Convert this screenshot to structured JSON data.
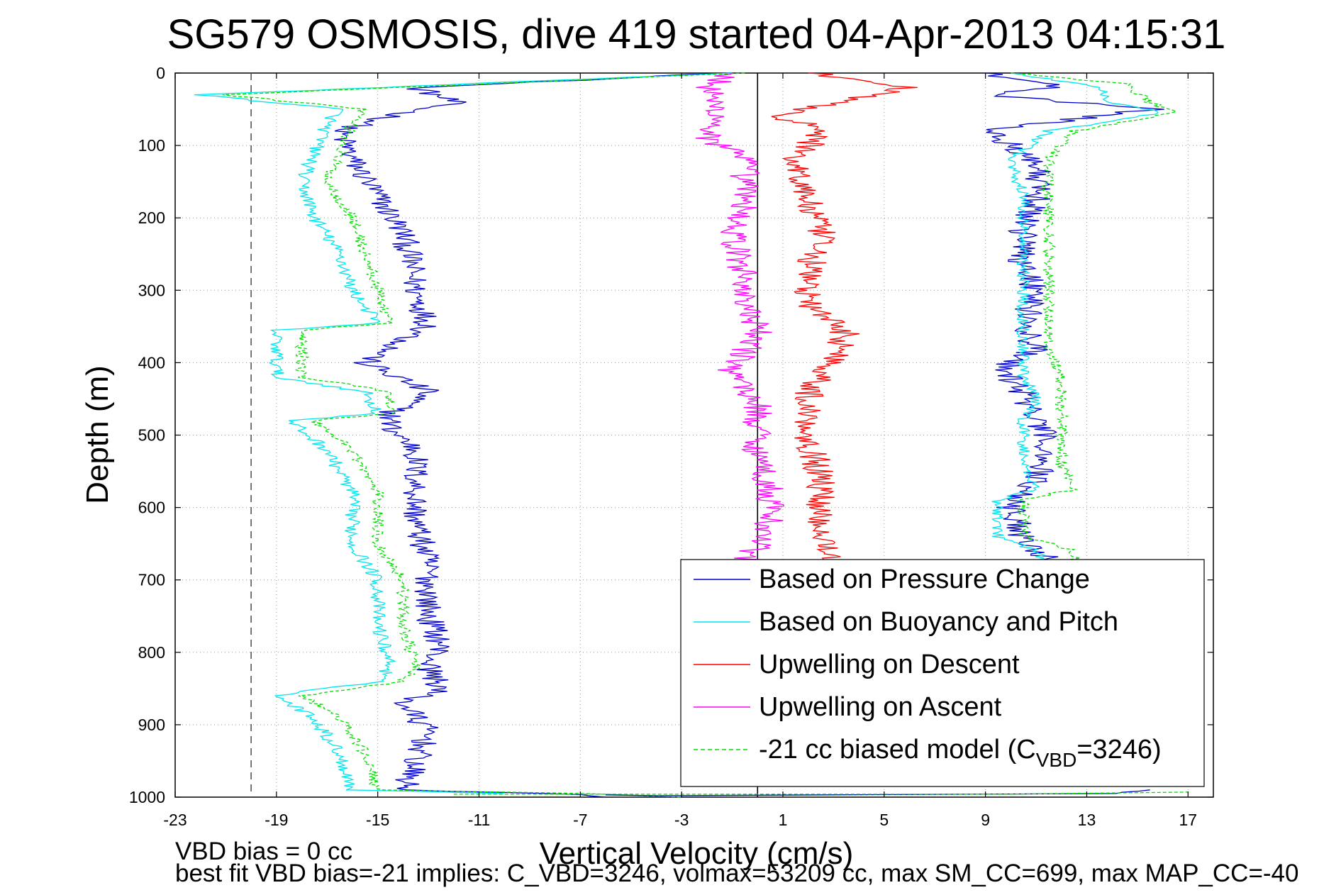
{
  "chart_data": {
    "type": "line",
    "title": "SG579 OSMOSIS, dive 419 started 04-Apr-2013 04:15:31",
    "xlabel": "Vertical Velocity (cm/s)",
    "ylabel": "Depth (m)",
    "xlim": [
      -23,
      18
    ],
    "ylim": [
      0,
      1000
    ],
    "y_reversed": true,
    "grid": true,
    "xticks": [
      -23,
      -19,
      -15,
      -11,
      -7,
      -3,
      1,
      5,
      9,
      13,
      17
    ],
    "yticks": [
      0,
      100,
      200,
      300,
      400,
      500,
      600,
      700,
      800,
      900,
      1000
    ],
    "reference_lines": [
      {
        "x": -20,
        "style": "dashed",
        "color": "#555555"
      },
      {
        "x": 0,
        "style": "solid",
        "color": "#000000"
      }
    ],
    "legend_position": "bottom-right",
    "legend": [
      {
        "label": "Based on Pressure Change",
        "color": "#0000cc",
        "dashed": false
      },
      {
        "label": "Based on Buoyancy and Pitch",
        "color": "#00e5ee",
        "dashed": false
      },
      {
        "label": "Upwelling on Descent",
        "color": "#ff0000",
        "dashed": false
      },
      {
        "label": "Upwelling on Ascent",
        "color": "#ff00ff",
        "dashed": false
      },
      {
        "label_prefix": "-21 cc biased model (C",
        "label_sub": "VBD",
        "label_suffix": "=3246)",
        "color": "#00dd00",
        "dashed": true
      }
    ],
    "series": [
      {
        "key": "pressure_descent",
        "color": "#0000cc",
        "dashed": false,
        "noise": 0.55,
        "points": [
          [
            -1.0,
            0
          ],
          [
            -13.5,
            20
          ],
          [
            -12.0,
            40
          ],
          [
            -14.5,
            60
          ],
          [
            -16.5,
            80
          ],
          [
            -16.0,
            120
          ],
          [
            -15.0,
            170
          ],
          [
            -14.0,
            220
          ],
          [
            -13.7,
            260
          ],
          [
            -13.5,
            300
          ],
          [
            -13.0,
            350
          ],
          [
            -15.5,
            400
          ],
          [
            -13.0,
            440
          ],
          [
            -14.5,
            470
          ],
          [
            -14.5,
            490
          ],
          [
            -13.5,
            520
          ],
          [
            -13.5,
            560
          ],
          [
            -13.5,
            620
          ],
          [
            -13.0,
            680
          ],
          [
            -13.0,
            750
          ],
          [
            -12.5,
            790
          ],
          [
            -13.0,
            820
          ],
          [
            -12.5,
            850
          ],
          [
            -14.0,
            870
          ],
          [
            -13.0,
            910
          ],
          [
            -13.5,
            950
          ],
          [
            -14.0,
            990
          ],
          [
            -8.0,
            995
          ],
          [
            -6.0,
            1000
          ]
        ]
      },
      {
        "key": "buoyancy_descent",
        "color": "#00e5ee",
        "dashed": false,
        "noise": 0.3,
        "points": [
          [
            -1.0,
            0
          ],
          [
            -22.0,
            30
          ],
          [
            -16.5,
            50
          ],
          [
            -17.0,
            70
          ],
          [
            -17.5,
            110
          ],
          [
            -18.0,
            150
          ],
          [
            -17.5,
            200
          ],
          [
            -16.5,
            250
          ],
          [
            -16.0,
            300
          ],
          [
            -15.0,
            345
          ],
          [
            -19.0,
            355
          ],
          [
            -19.0,
            420
          ],
          [
            -15.5,
            440
          ],
          [
            -15.0,
            470
          ],
          [
            -18.5,
            480
          ],
          [
            -17.0,
            520
          ],
          [
            -16.0,
            580
          ],
          [
            -16.0,
            650
          ],
          [
            -15.0,
            700
          ],
          [
            -15.0,
            760
          ],
          [
            -14.5,
            820
          ],
          [
            -15.0,
            840
          ],
          [
            -19.0,
            860
          ],
          [
            -17.5,
            890
          ],
          [
            -16.5,
            940
          ],
          [
            -16.0,
            990
          ],
          [
            -10.0,
            995
          ]
        ]
      },
      {
        "key": "model_descent",
        "color": "#00dd00",
        "dashed": true,
        "noise": 0.25,
        "points": [
          [
            -0.5,
            0
          ],
          [
            -21.0,
            30
          ],
          [
            -15.5,
            50
          ],
          [
            -16.0,
            70
          ],
          [
            -16.5,
            110
          ],
          [
            -17.0,
            150
          ],
          [
            -16.0,
            200
          ],
          [
            -15.5,
            250
          ],
          [
            -15.0,
            300
          ],
          [
            -14.5,
            345
          ],
          [
            -18.0,
            355
          ],
          [
            -18.0,
            420
          ],
          [
            -14.5,
            440
          ],
          [
            -14.5,
            470
          ],
          [
            -17.5,
            480
          ],
          [
            -16.0,
            520
          ],
          [
            -15.0,
            580
          ],
          [
            -15.0,
            650
          ],
          [
            -14.0,
            700
          ],
          [
            -14.0,
            760
          ],
          [
            -13.5,
            820
          ],
          [
            -14.0,
            840
          ],
          [
            -18.0,
            860
          ],
          [
            -16.5,
            890
          ],
          [
            -15.5,
            940
          ],
          [
            -15.0,
            990
          ],
          [
            -7.0,
            995
          ],
          [
            -3.0,
            1000
          ]
        ]
      },
      {
        "key": "upwell_descent",
        "color": "#ff0000",
        "dashed": false,
        "noise": 0.6,
        "points": [
          [
            2.0,
            0
          ],
          [
            6.0,
            20
          ],
          [
            3.0,
            40
          ],
          [
            1.0,
            60
          ],
          [
            2.5,
            80
          ],
          [
            1.5,
            120
          ],
          [
            2.0,
            180
          ],
          [
            2.5,
            220
          ],
          [
            2.0,
            280
          ],
          [
            2.0,
            320
          ],
          [
            3.5,
            360
          ],
          [
            3.0,
            400
          ],
          [
            2.0,
            440
          ],
          [
            2.0,
            500
          ],
          [
            2.5,
            560
          ],
          [
            2.5,
            620
          ],
          [
            3.0,
            680
          ]
        ]
      },
      {
        "key": "upwell_ascent",
        "color": "#ff00ff",
        "dashed": false,
        "noise": 0.6,
        "points": [
          [
            -1.0,
            0
          ],
          [
            -2.0,
            20
          ],
          [
            -1.5,
            60
          ],
          [
            -2.0,
            90
          ],
          [
            -0.5,
            120
          ],
          [
            -0.5,
            180
          ],
          [
            -1.0,
            230
          ],
          [
            -0.5,
            280
          ],
          [
            -0.5,
            320
          ],
          [
            0.0,
            360
          ],
          [
            -1.0,
            410
          ],
          [
            0.0,
            460
          ],
          [
            0.0,
            520
          ],
          [
            0.5,
            580
          ],
          [
            0.5,
            620
          ],
          [
            -0.5,
            680
          ]
        ]
      },
      {
        "key": "pressure_ascent",
        "color": "#0000cc",
        "dashed": false,
        "noise": 0.6,
        "points": [
          [
            9.0,
            0
          ],
          [
            12.0,
            20
          ],
          [
            9.0,
            30
          ],
          [
            15.5,
            50
          ],
          [
            9.0,
            80
          ],
          [
            11.0,
            120
          ],
          [
            11.0,
            170
          ],
          [
            10.5,
            220
          ],
          [
            10.5,
            260
          ],
          [
            11.0,
            300
          ],
          [
            10.5,
            350
          ],
          [
            11.0,
            380
          ],
          [
            9.5,
            410
          ],
          [
            10.5,
            440
          ],
          [
            11.0,
            480
          ],
          [
            11.5,
            520
          ],
          [
            11.0,
            560
          ],
          [
            10.0,
            600
          ],
          [
            10.5,
            640
          ],
          [
            11.5,
            670
          ],
          [
            12.0,
            680
          ]
        ]
      },
      {
        "key": "buoyancy_ascent",
        "color": "#00e5ee",
        "dashed": false,
        "noise": 0.25,
        "points": [
          [
            10.0,
            0
          ],
          [
            13.5,
            20
          ],
          [
            14.0,
            40
          ],
          [
            16.0,
            55
          ],
          [
            11.5,
            80
          ],
          [
            10.0,
            120
          ],
          [
            10.5,
            170
          ],
          [
            10.5,
            220
          ],
          [
            10.5,
            280
          ],
          [
            10.5,
            330
          ],
          [
            10.5,
            380
          ],
          [
            10.5,
            420
          ],
          [
            11.0,
            450
          ],
          [
            10.5,
            480
          ],
          [
            10.5,
            540
          ],
          [
            11.0,
            575
          ],
          [
            9.5,
            590
          ],
          [
            9.5,
            640
          ],
          [
            11.0,
            660
          ],
          [
            11.5,
            680
          ]
        ]
      },
      {
        "key": "model_ascent",
        "color": "#00dd00",
        "dashed": true,
        "noise": 0.25,
        "points": [
          [
            10.0,
            0
          ],
          [
            14.5,
            15
          ],
          [
            15.5,
            40
          ],
          [
            16.5,
            55
          ],
          [
            12.5,
            80
          ],
          [
            11.5,
            120
          ],
          [
            11.5,
            170
          ],
          [
            11.5,
            220
          ],
          [
            11.5,
            280
          ],
          [
            11.5,
            330
          ],
          [
            11.5,
            380
          ],
          [
            12.0,
            420
          ],
          [
            12.0,
            450
          ],
          [
            12.0,
            480
          ],
          [
            12.0,
            540
          ],
          [
            12.5,
            575
          ],
          [
            10.5,
            590
          ],
          [
            10.5,
            640
          ],
          [
            12.5,
            660
          ],
          [
            12.5,
            680
          ]
        ]
      },
      {
        "key": "bottom_pressure",
        "color": "#0000cc",
        "dashed": false,
        "noise": 0.2,
        "points": [
          [
            -6.0,
            997
          ],
          [
            -4.0,
            998
          ],
          [
            14.0,
            995
          ],
          [
            15.5,
            990
          ]
        ]
      },
      {
        "key": "bottom_model",
        "color": "#00dd00",
        "dashed": true,
        "noise": 0.2,
        "points": [
          [
            -12.0,
            996
          ],
          [
            10.0,
            996
          ],
          [
            17.0,
            993
          ]
        ]
      }
    ]
  },
  "annotations": {
    "line1": "VBD bias = 0 cc",
    "line2": "best fit VBD bias=-21 implies: C_VBD=3246, volmax=53209 cc, max SM_CC=699, max MAP_CC=-40"
  }
}
